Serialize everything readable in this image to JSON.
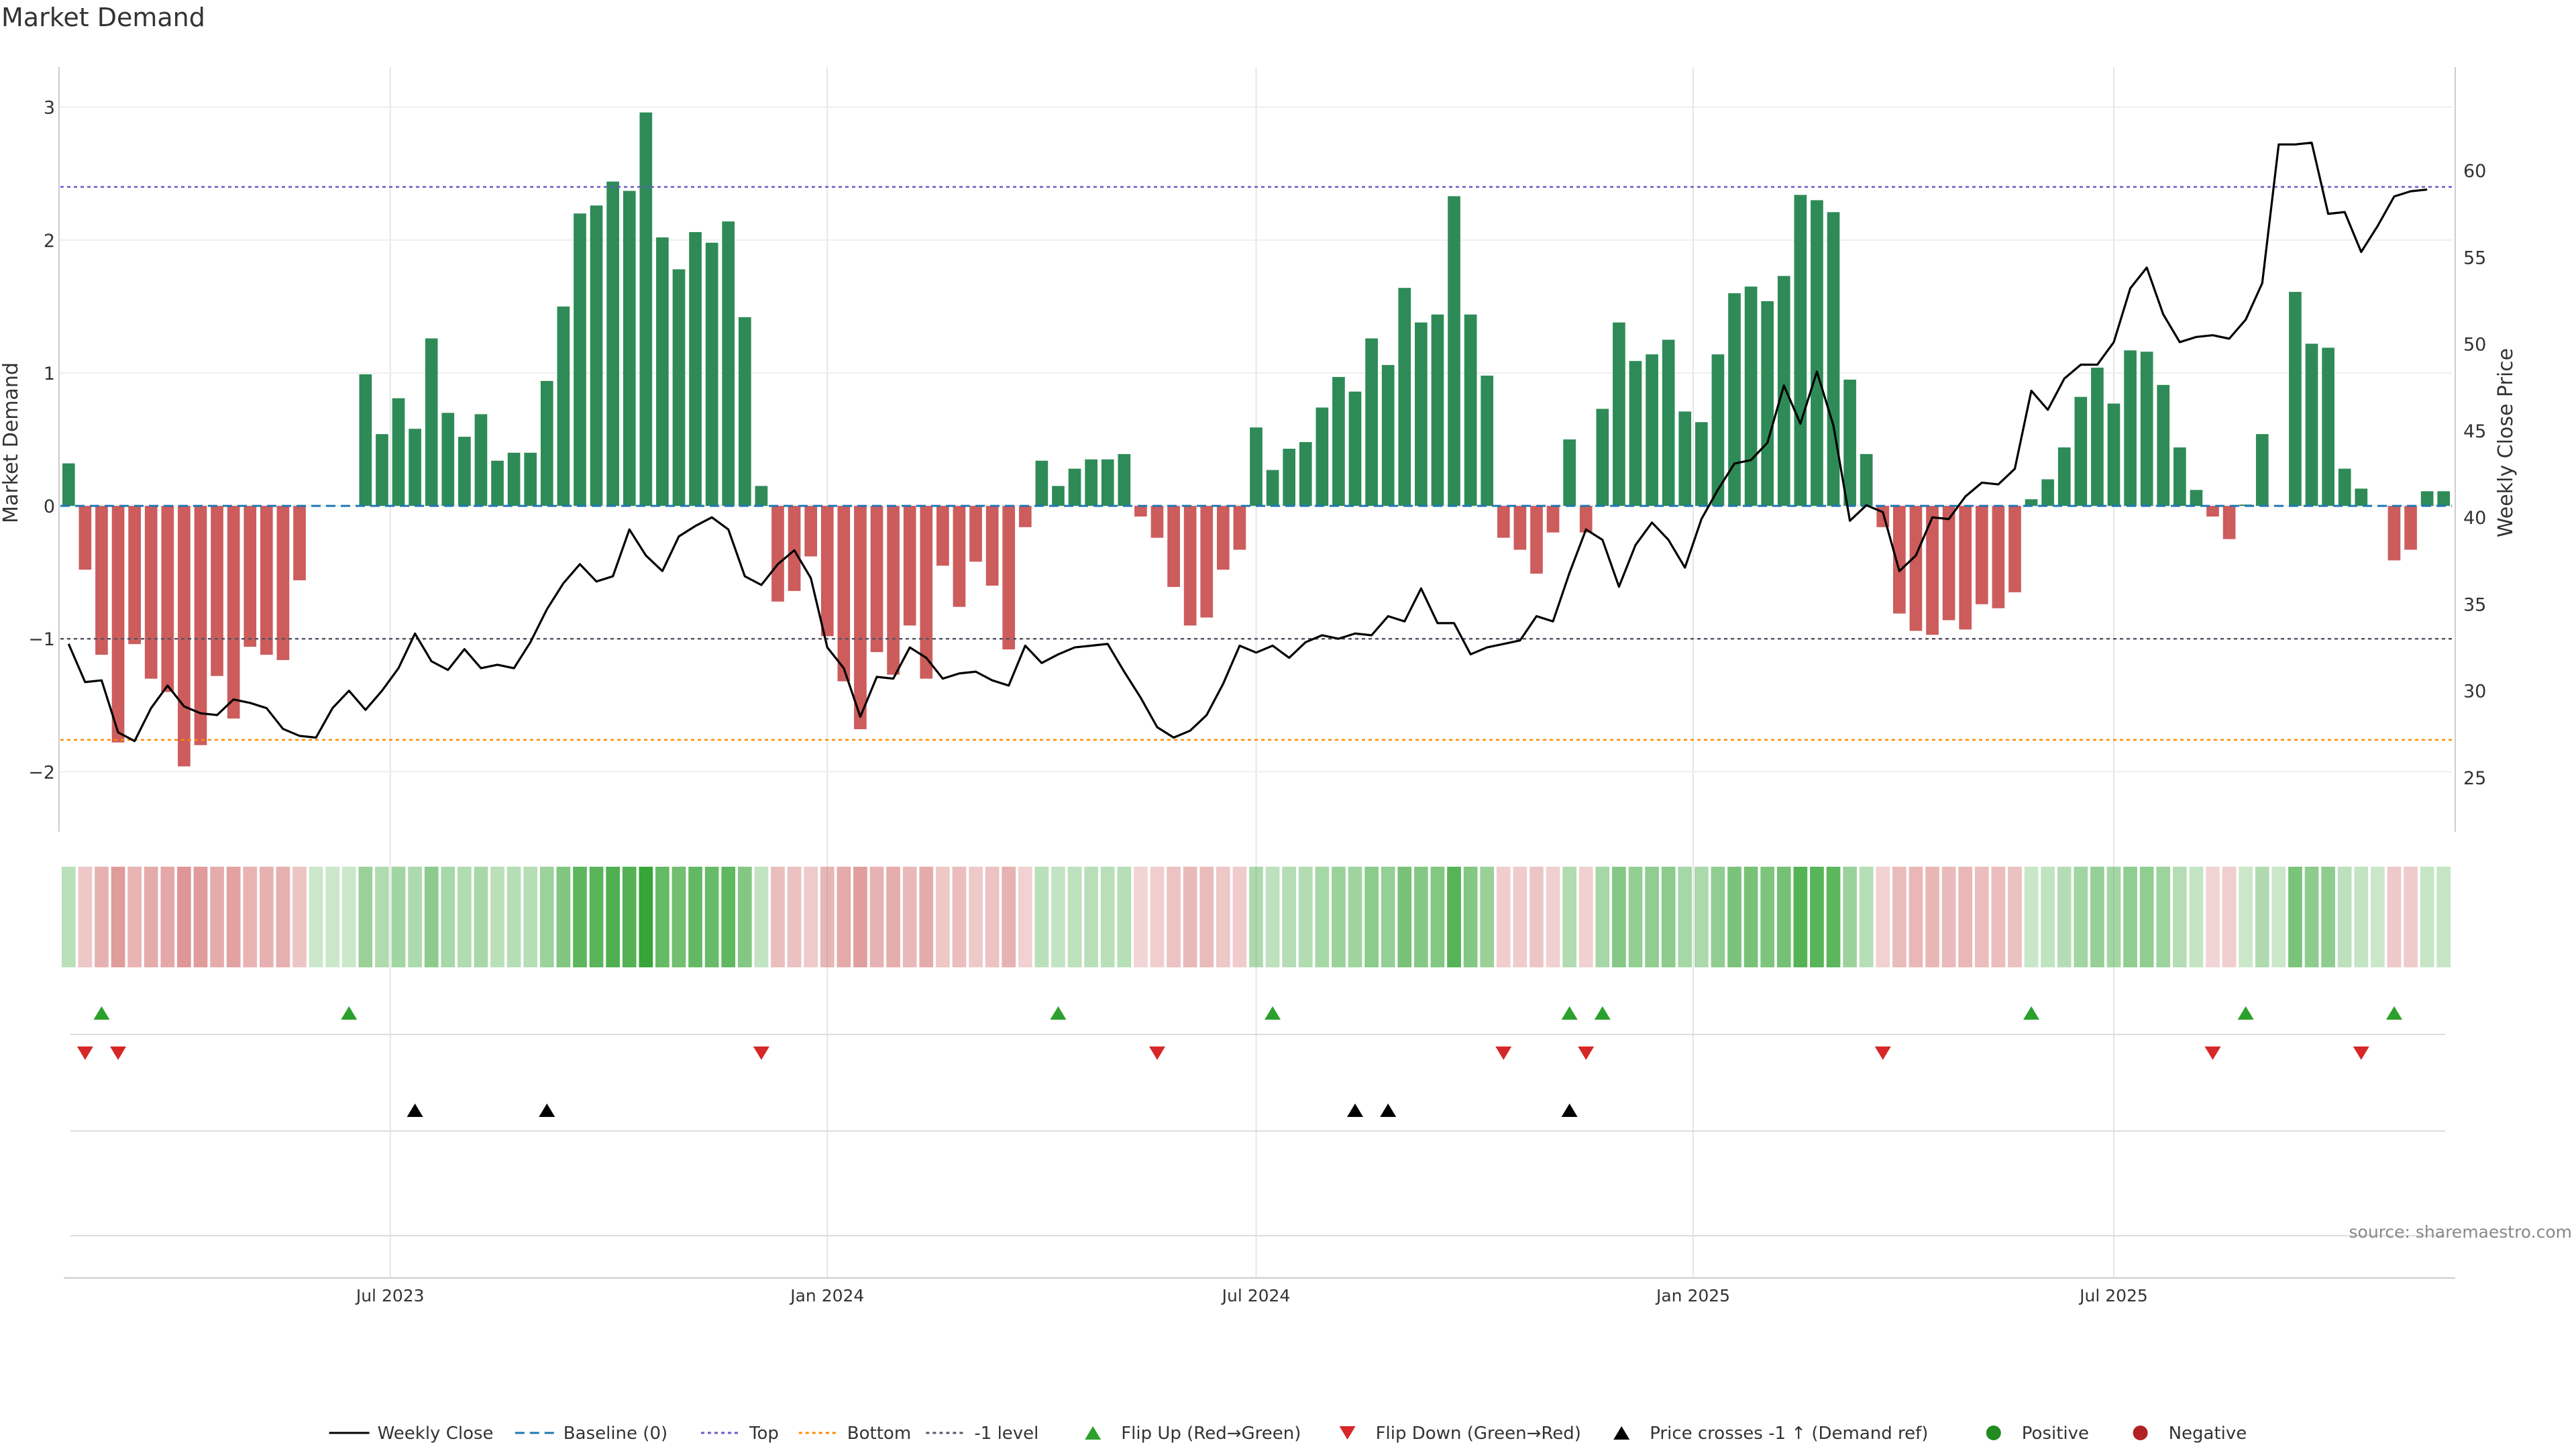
{
  "title": "Market Demand",
  "source": "source: sharemaestro.com",
  "colors": {
    "positive": "#2e8b57",
    "negative": "#cd5c5c",
    "price": "#000000",
    "baseline": "#1f77b4",
    "top": "#6a5acd",
    "bottom": "#ff8c00",
    "minus_one": "#555566",
    "flip_up": "#2ca02c",
    "flip_down": "#d62728",
    "cross": "#000000",
    "grid": "#e6e6e6",
    "dot_pos": "#228b22",
    "dot_neg": "#b22222"
  },
  "chart_data": {
    "type": "bar",
    "title": "Market Demand",
    "ylabel": "Market Demand",
    "y2label": "Weekly Close Price",
    "ylim": [
      -2.2,
      3.15
    ],
    "y2lim": [
      23.8,
      64.8
    ],
    "yticks": [
      "3",
      "2",
      "1",
      "0",
      "−1",
      "−2"
    ],
    "y2ticks": [
      "60",
      "55",
      "50",
      "45",
      "40",
      "35",
      "30",
      "25"
    ],
    "xticks": [
      {
        "label": "Jul 2023",
        "week": 20
      },
      {
        "label": "Jan 2024",
        "week": 46.5
      },
      {
        "label": "Jul 2024",
        "week": 72.5
      },
      {
        "label": "Jan 2025",
        "week": 99
      },
      {
        "label": "Jul 2025",
        "week": 124.5
      }
    ],
    "reference_lines": {
      "baseline": 0,
      "top": 2.4,
      "bottom": -1.76,
      "minus_one": -1
    },
    "demand": [
      0.32,
      -0.48,
      -1.12,
      -1.78,
      -1.04,
      -1.3,
      -1.4,
      -1.96,
      -1.8,
      -1.28,
      -1.6,
      -1.06,
      -1.12,
      -1.16,
      -0.56,
      0,
      0,
      0,
      0.99,
      0.54,
      0.81,
      0.58,
      1.26,
      0.7,
      0.52,
      0.69,
      0.34,
      0.4,
      0.4,
      0.94,
      1.5,
      2.2,
      2.26,
      2.44,
      2.37,
      2.96,
      2.02,
      1.78,
      2.06,
      1.98,
      2.14,
      1.42,
      0.15,
      -0.72,
      -0.64,
      -0.38,
      -0.98,
      -1.32,
      -1.68,
      -1.1,
      -1.27,
      -0.9,
      -1.3,
      -0.45,
      -0.76,
      -0.42,
      -0.6,
      -1.08,
      -0.16,
      0.34,
      0.15,
      0.28,
      0.35,
      0.35,
      0.39,
      -0.08,
      -0.24,
      -0.61,
      -0.9,
      -0.84,
      -0.48,
      -0.33,
      0.59,
      0.27,
      0.43,
      0.48,
      0.74,
      0.97,
      0.86,
      1.26,
      1.06,
      1.64,
      1.38,
      1.44,
      2.33,
      1.44,
      0.98,
      -0.24,
      -0.33,
      -0.51,
      -0.2,
      0.5,
      -0.2,
      0.73,
      1.38,
      1.09,
      1.14,
      1.25,
      0.71,
      0.63,
      1.14,
      1.6,
      1.65,
      1.54,
      1.73,
      2.34,
      2.3,
      2.21,
      0.95,
      0.39,
      -0.16,
      -0.81,
      -0.94,
      -0.97,
      -0.86,
      -0.93,
      -0.74,
      -0.77,
      -0.65,
      0.05,
      0.2,
      0.44,
      0.82,
      1.04,
      0.77,
      1.17,
      1.16,
      0.91,
      0.44,
      0.12,
      -0.08,
      -0.25,
      0.01,
      0.54,
      0,
      1.61,
      1.22,
      1.19,
      0.28,
      0.13,
      0,
      -0.41,
      -0.33,
      0.11,
      0.11
    ],
    "price": [
      32.7,
      30.5,
      30.6,
      27.6,
      27.1,
      29.0,
      30.3,
      29.1,
      28.7,
      28.6,
      29.5,
      29.3,
      29.0,
      27.8,
      27.4,
      27.3,
      29.0,
      30.0,
      28.9,
      30.0,
      31.3,
      33.3,
      31.7,
      31.2,
      32.4,
      31.3,
      31.5,
      31.3,
      32.8,
      34.7,
      36.2,
      37.3,
      36.3,
      36.6,
      39.3,
      37.8,
      36.9,
      38.9,
      39.5,
      40.0,
      39.3,
      36.6,
      36.1,
      37.3,
      38.1,
      36.5,
      32.5,
      31.3,
      28.5,
      30.8,
      30.7,
      32.5,
      31.9,
      30.7,
      31.0,
      31.1,
      30.6,
      30.3,
      32.6,
      31.6,
      32.1,
      32.5,
      32.6,
      32.7,
      31.1,
      29.6,
      27.9,
      27.3,
      27.7,
      28.6,
      30.4,
      32.6,
      32.2,
      32.6,
      31.9,
      32.8,
      33.2,
      33.0,
      33.3,
      33.2,
      34.3,
      34.0,
      35.9,
      33.9,
      33.9,
      32.1,
      32.5,
      32.7,
      32.9,
      34.3,
      34.0,
      36.8,
      39.3,
      38.7,
      36.0,
      38.4,
      39.7,
      38.7,
      37.1,
      39.9,
      41.6,
      43.1,
      43.3,
      44.3,
      47.6,
      45.4,
      48.4,
      45.3,
      39.8,
      40.7,
      40.3,
      36.9,
      37.8,
      40.0,
      39.9,
      41.2,
      42.0,
      41.9,
      42.8,
      47.3,
      46.2,
      48.0,
      48.8,
      48.8,
      50.1,
      53.2,
      54.4,
      51.7,
      50.1,
      50.4,
      50.5,
      50.3,
      51.4,
      53.5,
      61.5,
      61.5,
      61.6,
      57.5,
      57.6,
      55.3,
      56.8,
      58.5,
      58.8,
      58.9
    ],
    "markers": {
      "flip_up": [
        2,
        17,
        60,
        73,
        91,
        93,
        119,
        132,
        141
      ],
      "flip_down": [
        1,
        3,
        42,
        66,
        87,
        92,
        110,
        130,
        139
      ],
      "price_crosses": [
        21,
        29,
        78,
        80,
        91
      ]
    },
    "legend": [
      {
        "kind": "line",
        "label": "Weekly Close"
      },
      {
        "kind": "dash",
        "label": "Baseline (0)"
      },
      {
        "kind": "dot-blue",
        "label": "Top"
      },
      {
        "kind": "dot-orange",
        "label": "Bottom"
      },
      {
        "kind": "dot-gray",
        "label": "-1 level"
      },
      {
        "kind": "tri-up-green",
        "label": "Flip Up (Red→Green)"
      },
      {
        "kind": "tri-down-red",
        "label": "Flip Down (Green→Red)"
      },
      {
        "kind": "tri-up-black",
        "label": "Price crosses -1 ↑ (Demand ref)"
      },
      {
        "kind": "circle-green",
        "label": "Positive"
      },
      {
        "kind": "circle-red",
        "label": "Negative"
      }
    ],
    "legend_placement": "bottom-center"
  }
}
